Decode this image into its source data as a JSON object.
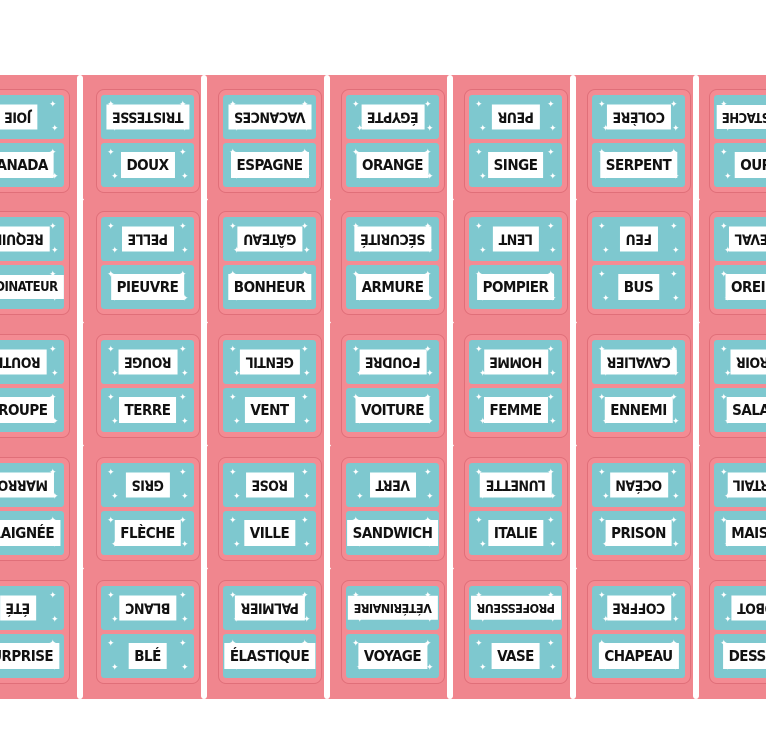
{
  "colors": {
    "card": "#f0868e",
    "card_border": "#e06f79",
    "panel": "#7ec8cf",
    "label_bg": "#ffffff",
    "label_text": "#111111",
    "background": "#ffffff"
  },
  "columns": [
    {
      "cards": [
        {
          "top": "JOIE",
          "bottom": "CANADA"
        },
        {
          "top": "REQUIN",
          "bottom": "ORDINATEUR"
        },
        {
          "top": "ROUTE",
          "bottom": "GROUPE"
        },
        {
          "top": "MARRON",
          "bottom": "ARAIGNÉE"
        },
        {
          "top": "ÉTÉ",
          "bottom": "SURPRISE"
        }
      ]
    },
    {
      "cards": [
        {
          "top": "TRISTESSE",
          "bottom": "DOUX"
        },
        {
          "top": "PELLE",
          "bottom": "PIEUVRE"
        },
        {
          "top": "ROUGE",
          "bottom": "TERRE"
        },
        {
          "top": "GRIS",
          "bottom": "FLÈCHE"
        },
        {
          "top": "BLANC",
          "bottom": "BLÉ"
        }
      ]
    },
    {
      "cards": [
        {
          "top": "VACANCES",
          "bottom": "ESPAGNE"
        },
        {
          "top": "GÂTEAU",
          "bottom": "BONHEUR"
        },
        {
          "top": "GENTIL",
          "bottom": "VENT"
        },
        {
          "top": "ROSE",
          "bottom": "VILLE"
        },
        {
          "top": "PALMIER",
          "bottom": "ÉLASTIQUE"
        }
      ]
    },
    {
      "cards": [
        {
          "top": "ÉGYPTE",
          "bottom": "ORANGE"
        },
        {
          "top": "SÉCURITÉ",
          "bottom": "ARMURE"
        },
        {
          "top": "FOUDRE",
          "bottom": "VOITURE"
        },
        {
          "top": "VERT",
          "bottom": "SANDWICH"
        },
        {
          "top": "VÉTÉRINAIRE",
          "bottom": "VOYAGE"
        }
      ]
    },
    {
      "cards": [
        {
          "top": "PEUR",
          "bottom": "SINGE"
        },
        {
          "top": "LENT",
          "bottom": "POMPIER"
        },
        {
          "top": "HOMME",
          "bottom": "FEMME"
        },
        {
          "top": "LUNETTE",
          "bottom": "ITALIE"
        },
        {
          "top": "PROFESSEUR",
          "bottom": "VASE"
        }
      ]
    },
    {
      "cards": [
        {
          "top": "COLÈRE",
          "bottom": "SERPENT"
        },
        {
          "top": "FEU",
          "bottom": "BUS"
        },
        {
          "top": "CAVALIER",
          "bottom": "ENNEMI"
        },
        {
          "top": "OCÉAN",
          "bottom": "PRISON"
        },
        {
          "top": "COFFRE",
          "bottom": "CHAPEAU"
        }
      ]
    },
    {
      "cards": [
        {
          "top": "MOUSTACHE",
          "bottom": "OURS"
        },
        {
          "top": "CHEVAL",
          "bottom": "OREILLE"
        },
        {
          "top": "MIROIR",
          "bottom": "SALADE"
        },
        {
          "top": "PORTAIL",
          "bottom": "MAISON"
        },
        {
          "top": "ROBOT",
          "bottom": "DESSERT"
        }
      ]
    }
  ]
}
